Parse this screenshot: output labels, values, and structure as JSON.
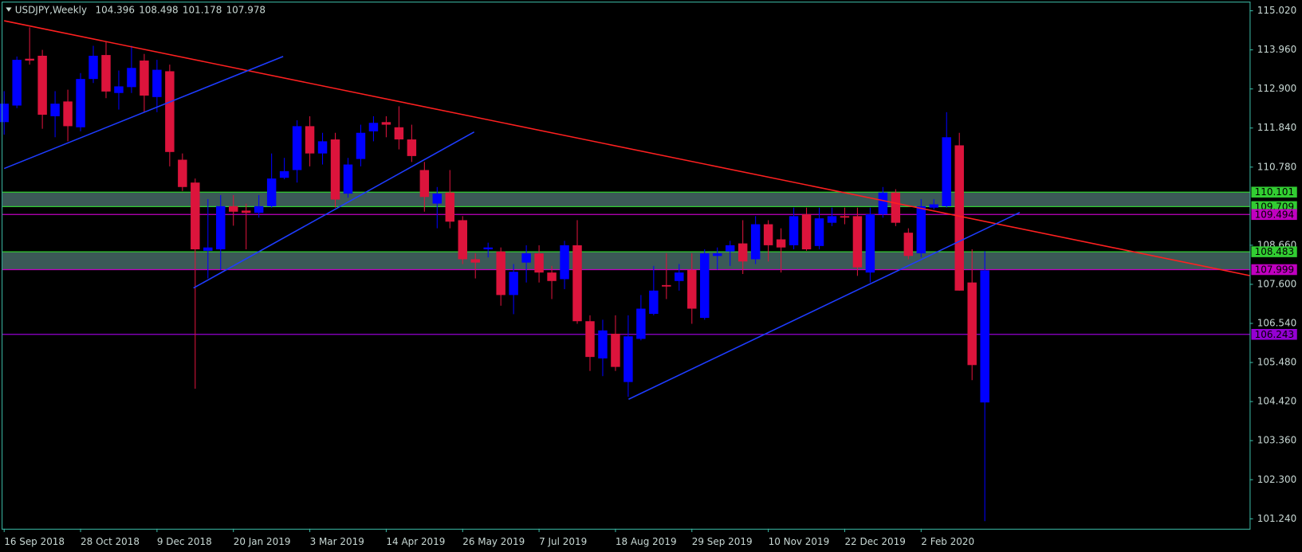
{
  "chart_data": {
    "type": "candlestick",
    "title": "USDJPY,Weekly",
    "categories": [
      "16 Sep 2018",
      null,
      null,
      null,
      null,
      null,
      "28 Oct 2018",
      null,
      null,
      null,
      null,
      null,
      "9 Dec 2018",
      null,
      null,
      null,
      null,
      null,
      "20 Jan 2019",
      null,
      null,
      null,
      null,
      null,
      "3 Mar 2019",
      null,
      null,
      null,
      null,
      null,
      "14 Apr 2019",
      null,
      null,
      null,
      null,
      null,
      "26 May 2019",
      null,
      null,
      null,
      null,
      null,
      "7 Jul 2019",
      null,
      null,
      null,
      null,
      null,
      "18 Aug 2019",
      null,
      null,
      null,
      null,
      null,
      "29 Sep 2019",
      null,
      null,
      null,
      null,
      null,
      "10 Nov 2019",
      null,
      null,
      null,
      null,
      null,
      "22 Dec 2019",
      null,
      null,
      null,
      null,
      null,
      "2 Feb 2020",
      null,
      null,
      null,
      null,
      null
    ],
    "open": [
      112.0,
      112.45,
      113.72,
      113.8,
      112.16,
      112.56,
      111.86,
      113.17,
      113.82,
      112.79,
      112.95,
      113.67,
      112.68,
      113.38,
      110.98,
      110.36,
      108.51,
      108.55,
      109.72,
      109.6,
      109.54,
      109.72,
      110.49,
      110.7,
      111.89,
      111.15,
      111.53,
      110.06,
      111.0,
      111.75,
      112.0,
      111.86,
      111.53,
      110.7,
      109.79,
      110.09,
      109.34,
      108.28,
      108.55,
      108.49,
      107.31,
      108.19,
      108.44,
      107.92,
      107.74,
      108.66,
      106.6,
      105.59,
      106.26,
      104.95,
      106.12,
      106.8,
      107.58,
      107.69,
      107.99,
      106.69,
      108.37,
      108.49,
      108.71,
      108.28,
      109.23,
      108.82,
      108.66,
      109.5,
      108.64,
      109.27,
      109.45,
      109.45,
      107.92,
      109.5,
      110.09,
      109.0,
      108.44,
      109.68,
      109.72,
      111.37,
      107.65,
      104.396
    ],
    "high": [
      112.84,
      113.78,
      114.57,
      113.96,
      112.84,
      112.88,
      113.33,
      114.07,
      114.19,
      113.4,
      114.07,
      113.85,
      113.69,
      113.56,
      111.15,
      110.47,
      109.91,
      110.02,
      110.02,
      109.79,
      110.02,
      111.15,
      111.03,
      112.05,
      112.16,
      111.71,
      111.71,
      111.03,
      111.93,
      112.16,
      112.16,
      112.43,
      111.93,
      110.92,
      110.24,
      110.7,
      109.45,
      108.44,
      108.73,
      108.6,
      108.15,
      108.66,
      108.66,
      108.1,
      108.78,
      109.34,
      106.76,
      106.64,
      106.76,
      106.76,
      107.31,
      108.1,
      108.44,
      108.15,
      108.44,
      108.55,
      108.6,
      108.78,
      109.34,
      109.45,
      109.34,
      109.12,
      109.68,
      109.68,
      109.68,
      109.68,
      109.68,
      109.68,
      109.68,
      110.24,
      110.18,
      109.12,
      109.91,
      109.91,
      112.27,
      111.71,
      108.55,
      108.498
    ],
    "low": [
      111.66,
      112.38,
      113.56,
      111.82,
      111.59,
      111.48,
      111.75,
      113.06,
      112.65,
      112.34,
      112.79,
      112.27,
      112.27,
      110.8,
      110.13,
      104.77,
      107.76,
      107.99,
      109.19,
      108.55,
      109.41,
      109.68,
      110.45,
      110.36,
      110.8,
      110.85,
      109.68,
      109.95,
      110.8,
      111.48,
      111.59,
      111.26,
      110.92,
      109.57,
      109.12,
      109.12,
      108.15,
      107.76,
      108.33,
      107.02,
      106.79,
      107.65,
      107.65,
      107.2,
      107.47,
      106.53,
      105.25,
      105.11,
      105.25,
      104.55,
      106.08,
      106.76,
      107.2,
      107.43,
      106.53,
      106.64,
      108.0,
      108.1,
      107.88,
      108.15,
      108.22,
      107.92,
      108.55,
      108.51,
      108.55,
      109.18,
      109.23,
      107.83,
      107.65,
      109.41,
      109.18,
      108.28,
      108.33,
      109.63,
      109.68,
      107.43,
      105.0,
      101.178
    ],
    "close": [
      112.5,
      113.69,
      113.67,
      112.2,
      112.5,
      111.89,
      113.17,
      113.8,
      112.83,
      112.97,
      113.47,
      112.72,
      113.42,
      111.19,
      110.24,
      108.55,
      108.6,
      109.72,
      109.57,
      109.54,
      109.72,
      110.47,
      110.67,
      111.89,
      111.15,
      111.48,
      109.9,
      110.85,
      111.71,
      111.98,
      111.93,
      111.53,
      111.08,
      109.97,
      110.06,
      109.3,
      108.28,
      108.19,
      108.6,
      107.31,
      107.94,
      108.44,
      107.92,
      107.69,
      108.66,
      106.6,
      105.63,
      106.35,
      105.36,
      106.19,
      106.94,
      107.43,
      107.54,
      107.92,
      106.94,
      108.44,
      108.44,
      108.66,
      108.22,
      109.23,
      108.66,
      108.6,
      109.45,
      108.55,
      109.39,
      109.45,
      109.41,
      108.06,
      109.5,
      110.09,
      109.27,
      108.37,
      109.72,
      109.77,
      111.59,
      107.43,
      105.41,
      107.978
    ],
    "up_color": "#0000ff",
    "down_color": "#dc143c",
    "ylim": [
      100.97,
      115.245
    ],
    "yticks": [
      {
        "value": 115.02,
        "label": "115.020"
      },
      {
        "value": 113.96,
        "label": "113.960"
      },
      {
        "value": 112.9,
        "label": "112.900"
      },
      {
        "value": 111.84,
        "label": "111.840"
      },
      {
        "value": 110.78,
        "label": "110.780"
      },
      {
        "value": 108.66,
        "label": "108.660"
      },
      {
        "value": 107.6,
        "label": "107.600"
      },
      {
        "value": 106.54,
        "label": "106.540"
      },
      {
        "value": 105.48,
        "label": "105.480"
      },
      {
        "value": 104.42,
        "label": "104.420"
      },
      {
        "value": 103.36,
        "label": "103.360"
      },
      {
        "value": 102.3,
        "label": "102.300"
      },
      {
        "value": 101.24,
        "label": "101.240"
      }
    ],
    "levels": [
      {
        "value": 110.101,
        "color": "#32cd32"
      },
      {
        "value": 109.709,
        "color": "#32cd32"
      },
      {
        "value": 109.494,
        "color": "#c000c0"
      },
      {
        "value": 108.483,
        "color": "#32cd32"
      },
      {
        "value": 107.999,
        "color": "#c000c0"
      },
      {
        "value": 106.243,
        "color": "#9400d3"
      }
    ],
    "zone_color": "#3b5957"
  }
}
